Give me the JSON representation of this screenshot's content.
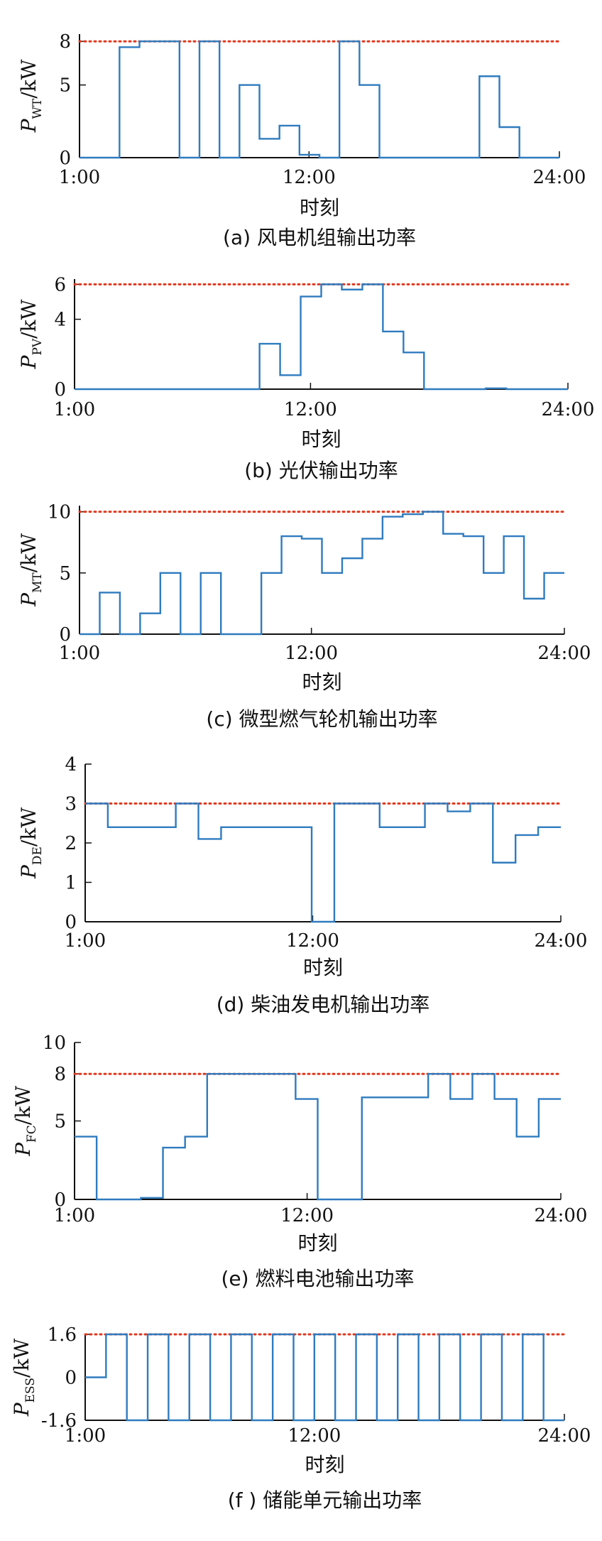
{
  "chart_data": [
    {
      "type": "line",
      "ylabel_main": "P",
      "ylabel_sub": "WT",
      "ylabel_unit": "/kW",
      "xlabel": "时刻",
      "caption": "(a) 风电机组输出功率",
      "xticks": [
        1,
        12,
        24
      ],
      "xtick_labels": [
        "1:00",
        "12:00",
        "24:00"
      ],
      "yticks": [
        0,
        5,
        8
      ],
      "ylim": [
        0,
        8.5
      ],
      "limit": 8,
      "x_range": [
        1,
        24
      ],
      "series": [
        {
          "step_values": [
            0,
            0,
            7.6,
            8,
            8,
            0,
            8,
            0,
            5,
            1.3,
            2.2,
            0.2,
            0,
            8,
            5,
            0,
            0,
            0,
            0,
            0,
            5.6,
            2.1,
            0,
            0
          ]
        }
      ]
    },
    {
      "type": "line",
      "ylabel_main": "P",
      "ylabel_sub": "PV",
      "ylabel_unit": "/kW",
      "xlabel": "时刻",
      "caption": "(b) 光伏输出功率",
      "xticks": [
        1,
        12,
        24
      ],
      "xtick_labels": [
        "1:00",
        "12:00",
        "24:00"
      ],
      "yticks": [
        0,
        4,
        6
      ],
      "ylim": [
        0,
        6.3
      ],
      "limit": 6,
      "x_range": [
        1,
        24
      ],
      "series": [
        {
          "step_values": [
            0,
            0,
            0,
            0,
            0,
            0,
            0,
            0,
            0,
            2.6,
            0.8,
            5.3,
            6,
            5.7,
            6,
            3.3,
            2.1,
            0,
            0,
            0,
            0.05,
            0,
            0,
            0
          ]
        }
      ]
    },
    {
      "type": "line",
      "ylabel_main": "P",
      "ylabel_sub": "MT",
      "ylabel_unit": "/kW",
      "xlabel": "时刻",
      "caption": "(c) 微型燃气轮机输出功率",
      "xticks": [
        1,
        12,
        24
      ],
      "xtick_labels": [
        "1:00",
        "12:00",
        "24:00"
      ],
      "yticks": [
        0,
        5,
        10
      ],
      "ylim": [
        0,
        10.5
      ],
      "limit": 10,
      "x_range": [
        1,
        24
      ],
      "series": [
        {
          "step_values": [
            0,
            3.4,
            0,
            1.7,
            5,
            0,
            5,
            0,
            0,
            5,
            8,
            7.8,
            5,
            6.2,
            7.8,
            9.6,
            9.8,
            10,
            8.2,
            8,
            5,
            8,
            2.9,
            5
          ]
        }
      ]
    },
    {
      "type": "line",
      "ylabel_main": "P",
      "ylabel_sub": "DE",
      "ylabel_unit": "/kW",
      "xlabel": "时刻",
      "caption": "(d) 柴油发电机输出功率",
      "xticks": [
        1,
        12,
        24
      ],
      "xtick_labels": [
        "1:00",
        "12:00",
        "24:00"
      ],
      "yticks": [
        0,
        1,
        2,
        3,
        4
      ],
      "ylim": [
        0,
        4
      ],
      "limit": 3,
      "x_range": [
        1,
        24
      ],
      "series": [
        {
          "step_values": [
            3,
            2.4,
            2.4,
            2.4,
            3,
            2.1,
            2.4,
            2.4,
            2.4,
            2.4,
            0,
            3,
            3,
            2.4,
            2.4,
            3,
            2.8,
            3,
            1.5,
            2.2,
            2.4
          ]
        }
      ]
    },
    {
      "type": "line",
      "ylabel_main": "P",
      "ylabel_sub": "FC",
      "ylabel_unit": "/kW",
      "xlabel": "时刻",
      "caption": "(e) 燃料电池输出功率",
      "xticks": [
        1,
        12,
        24
      ],
      "xtick_labels": [
        "1:00",
        "12:00",
        "24:00"
      ],
      "yticks": [
        0,
        5,
        8,
        10
      ],
      "ylim": [
        0,
        10
      ],
      "limit": 8,
      "x_range": [
        1,
        24
      ],
      "series": [
        {
          "step_values": [
            4,
            0,
            0,
            0.1,
            3.3,
            4,
            8,
            8,
            8,
            8,
            6.4,
            0,
            0,
            6.5,
            6.5,
            6.5,
            8,
            6.4,
            8,
            6.4,
            4,
            6.4
          ]
        }
      ]
    },
    {
      "type": "line",
      "ylabel_main": "P",
      "ylabel_sub": "ESS",
      "ylabel_unit": "/kW",
      "xlabel": "时刻",
      "caption": "(f ) 储能单元输出功率",
      "xticks": [
        1,
        12,
        24
      ],
      "xtick_labels": [
        "1:00",
        "12:00",
        "24:00"
      ],
      "yticks": [
        -1.6,
        0,
        1.6
      ],
      "ytick_labels": [
        "-1.6",
        "0",
        "1.6"
      ],
      "ylim": [
        -1.6,
        1.6
      ],
      "limit": 1.6,
      "x_range": [
        1,
        24
      ],
      "series": [
        {
          "step_values": [
            0,
            1.6,
            -1.6,
            1.6,
            -1.6,
            1.6,
            -1.6,
            1.6,
            -1.6,
            1.6,
            -1.6,
            1.6,
            -1.6,
            1.6,
            -1.6,
            1.6,
            -1.6,
            1.6,
            -1.6,
            1.6,
            -1.6,
            1.6,
            -1.6
          ]
        }
      ]
    }
  ],
  "colors": {
    "series": "#2f7bbf",
    "limit": "#e0391f",
    "axis": "#111111",
    "baseline": "#333333"
  }
}
